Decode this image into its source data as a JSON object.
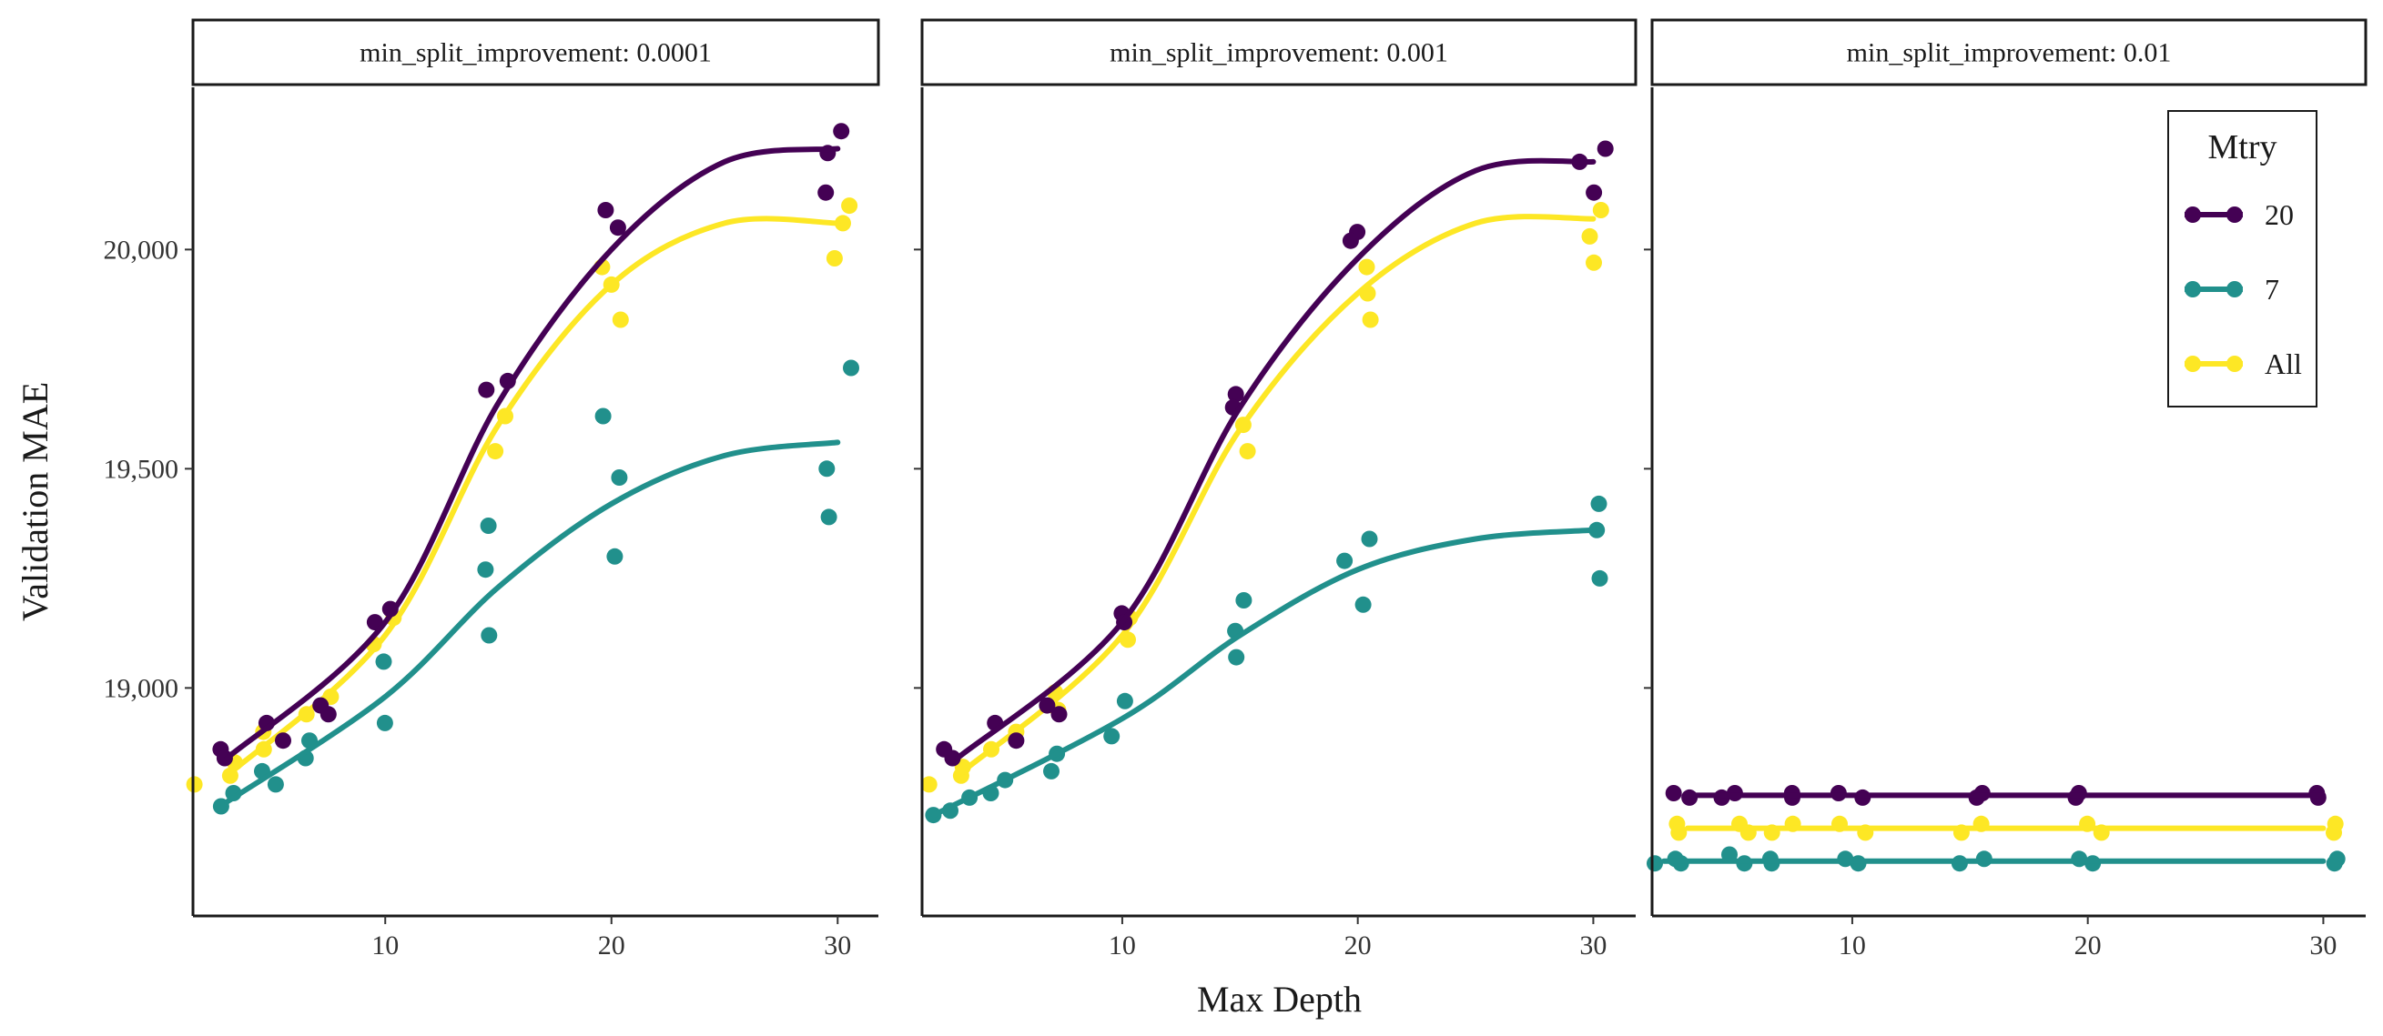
{
  "chart_data": {
    "type": "scatter",
    "xlabel": "Max Depth",
    "ylabel": "Validation MAE",
    "xlim": [
      1.5,
      31.8
    ],
    "ylim": [
      18480,
      20370
    ],
    "x_ticks": [
      10,
      20,
      30
    ],
    "x_tick_labels": [
      "10",
      "20",
      "30"
    ],
    "y_ticks": [
      19000,
      19500,
      20000
    ],
    "y_tick_labels": [
      "19,000",
      "19,500",
      "20,000"
    ],
    "legend": {
      "title": "Mtry",
      "position": "right-inside-top",
      "entries": [
        "20",
        "7",
        "All"
      ]
    },
    "series_colors": {
      "20": "#440154",
      "7": "#21908C",
      "All": "#FDE725"
    },
    "facets": [
      {
        "label": "min_split_improvement: 0.0001",
        "series": [
          {
            "name": "20",
            "x": [
              3,
              3,
              5,
              5,
              7,
              7,
              10,
              10,
              15,
              15,
              20,
              20,
              30,
              30,
              30
            ],
            "y": [
              18860,
              18840,
              18920,
              18880,
              18960,
              18940,
              19180,
              19150,
              19700,
              19680,
              20090,
              20050,
              20270,
              20220,
              20130
            ],
            "curve_x": [
              3,
              10,
              15,
              20,
              25,
              30
            ],
            "curve_y": [
              18840,
              19150,
              19650,
              20000,
              20200,
              20230
            ]
          },
          {
            "name": "7",
            "x": [
              3,
              3,
              5,
              5,
              7,
              7,
              10,
              10,
              15,
              15,
              15,
              20,
              20,
              20,
              30,
              30,
              30
            ],
            "y": [
              18730,
              18760,
              18780,
              18810,
              18840,
              18880,
              18920,
              19060,
              19120,
              19270,
              19370,
              19300,
              19480,
              19620,
              19390,
              19500,
              19730
            ],
            "curve_x": [
              3,
              10,
              15,
              20,
              25,
              30
            ],
            "curve_y": [
              18740,
              18980,
              19230,
              19420,
              19530,
              19560
            ]
          },
          {
            "name": "All",
            "x": [
              2,
              3,
              3,
              5,
              5,
              7,
              7,
              10,
              10,
              15,
              15,
              20,
              20,
              20,
              30,
              30,
              30
            ],
            "y": [
              18780,
              18800,
              18830,
              18860,
              18900,
              18940,
              18980,
              19100,
              19160,
              19540,
              19620,
              19840,
              19920,
              19960,
              19980,
              20060,
              20100
            ],
            "curve_x": [
              3,
              10,
              15,
              20,
              25,
              30
            ],
            "curve_y": [
              18800,
              19120,
              19600,
              19920,
              20060,
              20060
            ]
          }
        ]
      },
      {
        "label": "min_split_improvement: 0.001",
        "series": [
          {
            "name": "20",
            "x": [
              3,
              3,
              5,
              5,
              7,
              7,
              10,
              10,
              15,
              15,
              20,
              20,
              30,
              30,
              30
            ],
            "y": [
              18860,
              18840,
              18920,
              18880,
              18960,
              18940,
              19170,
              19150,
              19670,
              19640,
              20040,
              20020,
              20230,
              20200,
              20130
            ],
            "curve_x": [
              3,
              10,
              15,
              20,
              25,
              30
            ],
            "curve_y": [
              18840,
              19150,
              19640,
              19980,
              20180,
              20200
            ]
          },
          {
            "name": "7",
            "x": [
              2,
              3,
              3,
              5,
              5,
              7,
              7,
              10,
              10,
              15,
              15,
              15,
              20,
              20,
              20,
              30,
              30,
              30
            ],
            "y": [
              18710,
              18720,
              18750,
              18760,
              18790,
              18810,
              18850,
              18890,
              18970,
              19070,
              19130,
              19200,
              19190,
              19290,
              19340,
              19250,
              19360,
              19420
            ],
            "curve_x": [
              2,
              10,
              15,
              20,
              25,
              30
            ],
            "curve_y": [
              18710,
              18930,
              19120,
              19270,
              19340,
              19360
            ]
          },
          {
            "name": "All",
            "x": [
              2,
              3,
              3,
              5,
              5,
              7,
              7,
              10,
              10,
              15,
              15,
              20,
              20,
              20,
              30,
              30,
              30
            ],
            "y": [
              18780,
              18800,
              18820,
              18860,
              18900,
              18950,
              18990,
              19110,
              19160,
              19540,
              19600,
              19840,
              19900,
              19960,
              19970,
              20030,
              20090
            ],
            "curve_x": [
              3,
              10,
              15,
              20,
              25,
              30
            ],
            "curve_y": [
              18800,
              19120,
              19590,
              19900,
              20060,
              20070
            ]
          }
        ]
      },
      {
        "label": "min_split_improvement: 0.01",
        "series": [
          {
            "name": "20",
            "x": [
              3,
              3,
              5,
              5,
              7,
              7,
              10,
              10,
              15,
              15,
              20,
              20,
              30,
              30
            ],
            "y": [
              18760,
              18750,
              18760,
              18750,
              18760,
              18750,
              18760,
              18750,
              18760,
              18750,
              18760,
              18750,
              18760,
              18750
            ],
            "curve_x": [
              3,
              30
            ],
            "curve_y": [
              18755,
              18755
            ]
          },
          {
            "name": "7",
            "x": [
              2,
              3,
              3,
              5,
              5,
              7,
              7,
              10,
              10,
              15,
              15,
              20,
              20,
              30,
              30
            ],
            "y": [
              18600,
              18610,
              18600,
              18620,
              18600,
              18610,
              18600,
              18610,
              18600,
              18610,
              18600,
              18610,
              18600,
              18610,
              18600
            ],
            "curve_x": [
              2,
              30
            ],
            "curve_y": [
              18605,
              18605
            ]
          },
          {
            "name": "All",
            "x": [
              3,
              3,
              5,
              5,
              7,
              7,
              10,
              10,
              15,
              15,
              20,
              20,
              30,
              30
            ],
            "y": [
              18690,
              18670,
              18690,
              18670,
              18690,
              18670,
              18690,
              18670,
              18690,
              18670,
              18690,
              18670,
              18690,
              18670
            ],
            "curve_x": [
              3,
              30
            ],
            "curve_y": [
              18680,
              18680
            ]
          }
        ]
      }
    ]
  }
}
